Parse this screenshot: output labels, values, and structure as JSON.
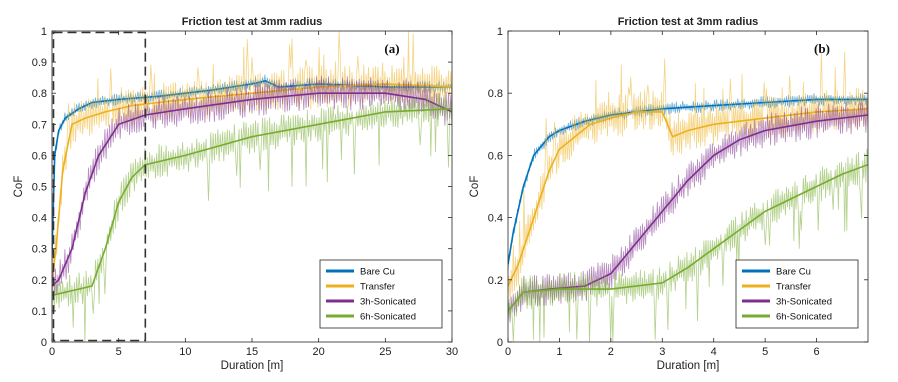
{
  "figure": {
    "background": "#ffffff"
  },
  "chart_data": [
    {
      "type": "line",
      "title": "Friction test at 3mm radius",
      "panel_label": "(a)",
      "xlabel": "Duration [m]",
      "ylabel": "CoF",
      "xlim": [
        0,
        30
      ],
      "ylim": [
        0,
        1
      ],
      "xticks": [
        0,
        5,
        10,
        15,
        20,
        25,
        30
      ],
      "yticks": [
        0,
        0.1,
        0.2,
        0.3,
        0.4,
        0.5,
        0.6,
        0.7,
        0.8,
        0.9,
        1
      ],
      "grid": false,
      "legend_position": "bottom-right",
      "inset_box": {
        "x": [
          0,
          7
        ],
        "y": [
          0,
          1
        ],
        "style": "dashed"
      },
      "series": [
        {
          "name": "Bare Cu",
          "color": "#0072BD",
          "x": [
            0,
            0.2,
            0.5,
            1,
            2,
            3,
            5,
            8,
            12,
            15,
            16,
            17,
            20,
            25,
            30
          ],
          "y": [
            0.28,
            0.6,
            0.68,
            0.72,
            0.75,
            0.77,
            0.78,
            0.79,
            0.81,
            0.83,
            0.84,
            0.82,
            0.83,
            0.82,
            0.82
          ]
        },
        {
          "name": "Transfer",
          "color": "#EDB120",
          "x": [
            0,
            0.3,
            0.8,
            1.5,
            2.5,
            4,
            6,
            10,
            15,
            20,
            25,
            30
          ],
          "y": [
            0.2,
            0.3,
            0.55,
            0.7,
            0.72,
            0.74,
            0.76,
            0.78,
            0.8,
            0.82,
            0.83,
            0.82
          ]
        },
        {
          "name": "3h-Sonicated",
          "color": "#7E2F8E",
          "x": [
            0,
            0.5,
            1.5,
            2.5,
            3.5,
            5,
            7,
            10,
            15,
            20,
            25,
            28,
            30
          ],
          "y": [
            0.18,
            0.2,
            0.3,
            0.48,
            0.6,
            0.7,
            0.73,
            0.75,
            0.78,
            0.8,
            0.8,
            0.78,
            0.74
          ]
        },
        {
          "name": "6h-Sonicated",
          "color": "#77AC30",
          "x": [
            0,
            1,
            2,
            3,
            4,
            5,
            6,
            7,
            10,
            15,
            20,
            25,
            30
          ],
          "y": [
            0.15,
            0.16,
            0.17,
            0.18,
            0.3,
            0.45,
            0.53,
            0.57,
            0.6,
            0.66,
            0.7,
            0.74,
            0.75
          ]
        }
      ]
    },
    {
      "type": "line",
      "title": "Friction test at 3mm radius",
      "panel_label": "(b)",
      "xlabel": "Duration [m]",
      "ylabel": "CoF",
      "xlim": [
        0,
        7
      ],
      "ylim": [
        0,
        1
      ],
      "xticks": [
        0,
        1,
        2,
        3,
        4,
        5,
        6
      ],
      "yticks": [
        0,
        0.2,
        0.4,
        0.6,
        0.8,
        1
      ],
      "grid": false,
      "legend_position": "bottom-right",
      "series": [
        {
          "name": "Bare Cu",
          "color": "#0072BD",
          "x": [
            0,
            0.1,
            0.3,
            0.5,
            0.8,
            1,
            1.5,
            2,
            3,
            4,
            5,
            6,
            7
          ],
          "y": [
            0.25,
            0.35,
            0.5,
            0.6,
            0.66,
            0.68,
            0.71,
            0.73,
            0.75,
            0.76,
            0.77,
            0.78,
            0.78
          ]
        },
        {
          "name": "Transfer",
          "color": "#EDB120",
          "x": [
            0,
            0.2,
            0.4,
            0.6,
            0.8,
            1,
            1.3,
            1.6,
            2,
            2.5,
            3,
            3.2,
            3.5,
            4,
            5,
            6,
            7
          ],
          "y": [
            0.18,
            0.25,
            0.35,
            0.45,
            0.55,
            0.62,
            0.66,
            0.7,
            0.72,
            0.74,
            0.74,
            0.66,
            0.68,
            0.7,
            0.72,
            0.74,
            0.75
          ]
        },
        {
          "name": "3h-Sonicated",
          "color": "#7E2F8E",
          "x": [
            0,
            0.3,
            0.8,
            1.5,
            2,
            2.5,
            3,
            3.5,
            4,
            4.5,
            5,
            6,
            7
          ],
          "y": [
            0.1,
            0.16,
            0.17,
            0.18,
            0.22,
            0.32,
            0.42,
            0.52,
            0.6,
            0.65,
            0.68,
            0.71,
            0.73
          ]
        },
        {
          "name": "6h-Sonicated",
          "color": "#77AC30",
          "x": [
            0,
            0.3,
            1,
            2,
            3,
            3.5,
            4,
            4.5,
            5,
            5.5,
            6,
            6.5,
            7
          ],
          "y": [
            0.1,
            0.16,
            0.17,
            0.17,
            0.19,
            0.24,
            0.3,
            0.36,
            0.42,
            0.46,
            0.5,
            0.54,
            0.57
          ]
        }
      ]
    }
  ]
}
